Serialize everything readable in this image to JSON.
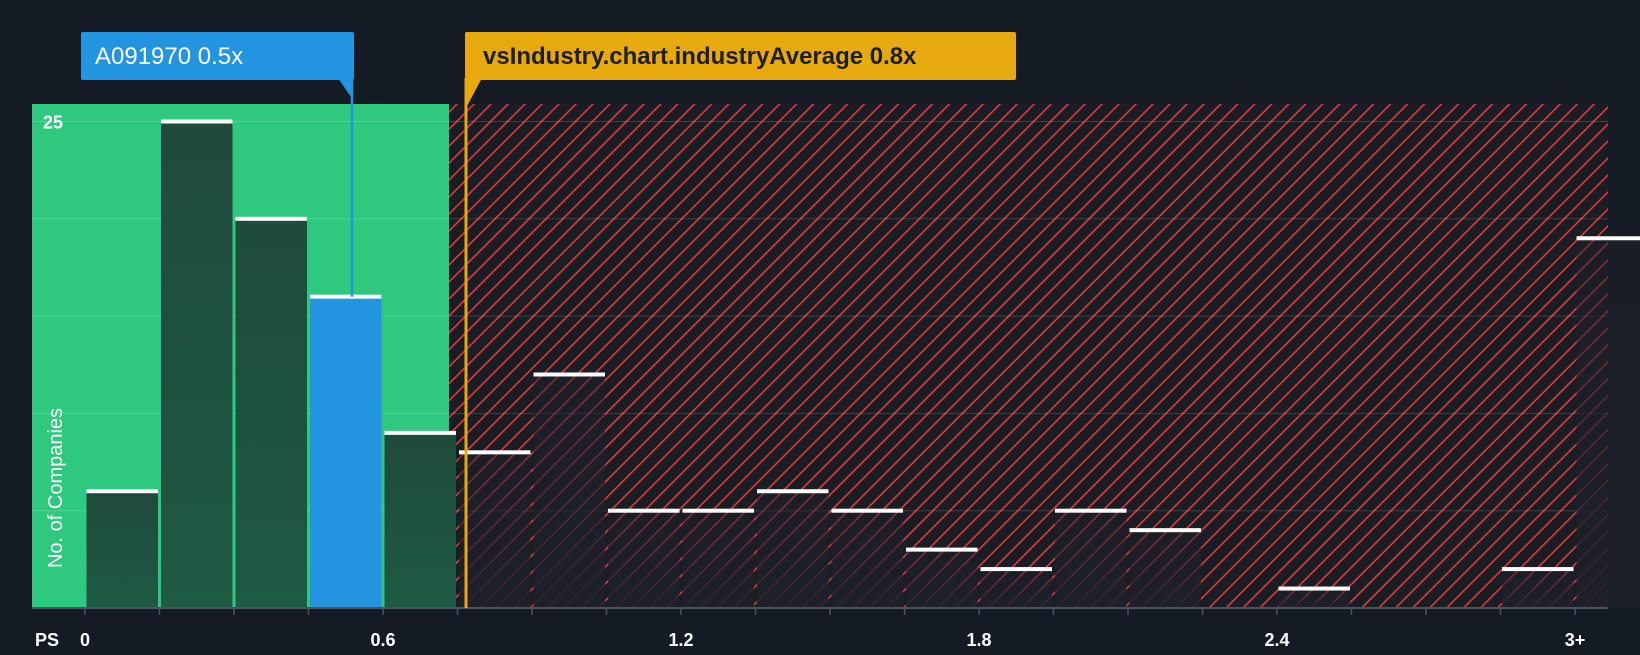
{
  "chart_data": {
    "type": "bar",
    "title": "",
    "xlabel": "PS",
    "ylabel": "No. of Companies",
    "x_tick_labels": [
      "0",
      "0.6",
      "1.2",
      "1.8",
      "2.4",
      "3+"
    ],
    "x_tick_values": [
      0,
      0.6,
      1.2,
      1.8,
      2.4,
      3.0
    ],
    "y_tick_labels": [
      "25"
    ],
    "y_tick_values": [
      25
    ],
    "ylim": [
      0,
      25.9
    ],
    "grid": true,
    "bin_width": 0.15,
    "bins": [
      {
        "x": 0.0,
        "value": 6
      },
      {
        "x": 0.15,
        "value": 25
      },
      {
        "x": 0.3,
        "value": 20
      },
      {
        "x": 0.45,
        "value": 16
      },
      {
        "x": 0.6,
        "value": 9
      },
      {
        "x": 0.75,
        "value": 8
      },
      {
        "x": 0.9,
        "value": 12
      },
      {
        "x": 1.05,
        "value": 5
      },
      {
        "x": 1.2,
        "value": 5
      },
      {
        "x": 1.35,
        "value": 6
      },
      {
        "x": 1.5,
        "value": 5
      },
      {
        "x": 1.65,
        "value": 3
      },
      {
        "x": 1.8,
        "value": 2
      },
      {
        "x": 1.95,
        "value": 5
      },
      {
        "x": 2.1,
        "value": 4
      },
      {
        "x": 2.25,
        "value": 0
      },
      {
        "x": 2.4,
        "value": 1
      },
      {
        "x": 2.55,
        "value": 0
      },
      {
        "x": 2.7,
        "value": 0
      },
      {
        "x": 2.85,
        "value": 2
      },
      {
        "x": 3.0,
        "value": 19
      }
    ],
    "highlight_bin_x": 0.45,
    "subject": {
      "label": "A091970 0.5x",
      "value": 0.5
    },
    "industry_average": {
      "label": "vsIndustry.chart.industryAverage 0.8x",
      "value": 0.8
    },
    "colors": {
      "background": "#151b24",
      "good_zone": "#2ec97f",
      "bad_zone": "#e03a3e",
      "subject": "#2394e0",
      "industry": "#e8a90f",
      "bar_dark": "#1c4a3a"
    }
  }
}
